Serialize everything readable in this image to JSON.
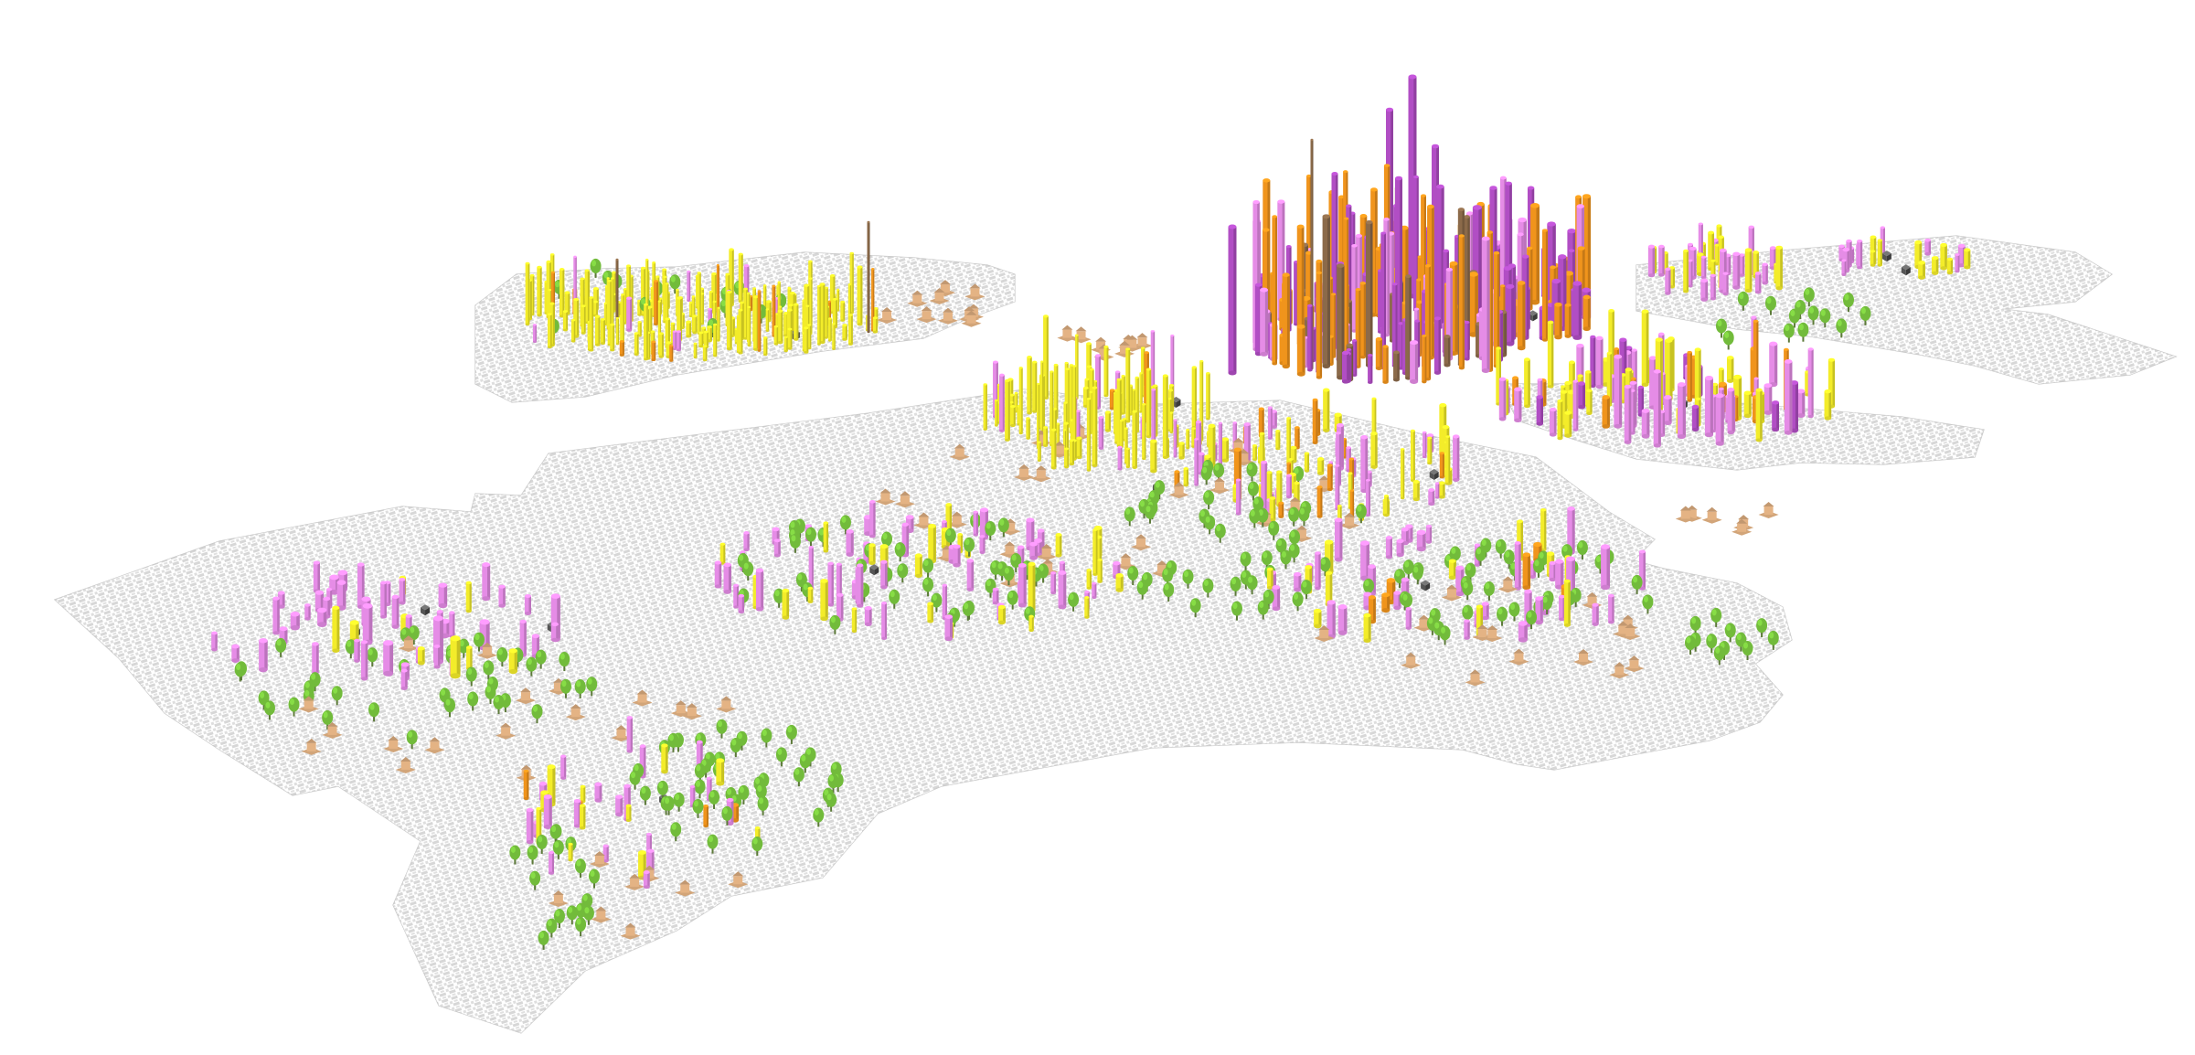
{
  "map": {
    "style": "isometric 3D city data map",
    "background_color": "#ffffff",
    "boundary_stroke_color": "#c8c8c8",
    "street_color": "#d2d2d2",
    "layers": [
      {
        "id": "buildings-purple",
        "color": "#b14ec4",
        "shape": "column"
      },
      {
        "id": "buildings-pink",
        "color": "#e58ce6",
        "shape": "column"
      },
      {
        "id": "buildings-orange",
        "color": "#f0941c",
        "shape": "column"
      },
      {
        "id": "buildings-yellow",
        "color": "#f3ec2a",
        "shape": "column"
      },
      {
        "id": "buildings-brown",
        "color": "#8b6a4a",
        "shape": "column"
      },
      {
        "id": "trees",
        "color": "#72bb3b",
        "shape": "tree-icon"
      },
      {
        "id": "huts",
        "color": "#e4b384",
        "shape": "hut-icon"
      },
      {
        "id": "stations",
        "color": "#555555",
        "shape": "cube-icon"
      }
    ]
  }
}
